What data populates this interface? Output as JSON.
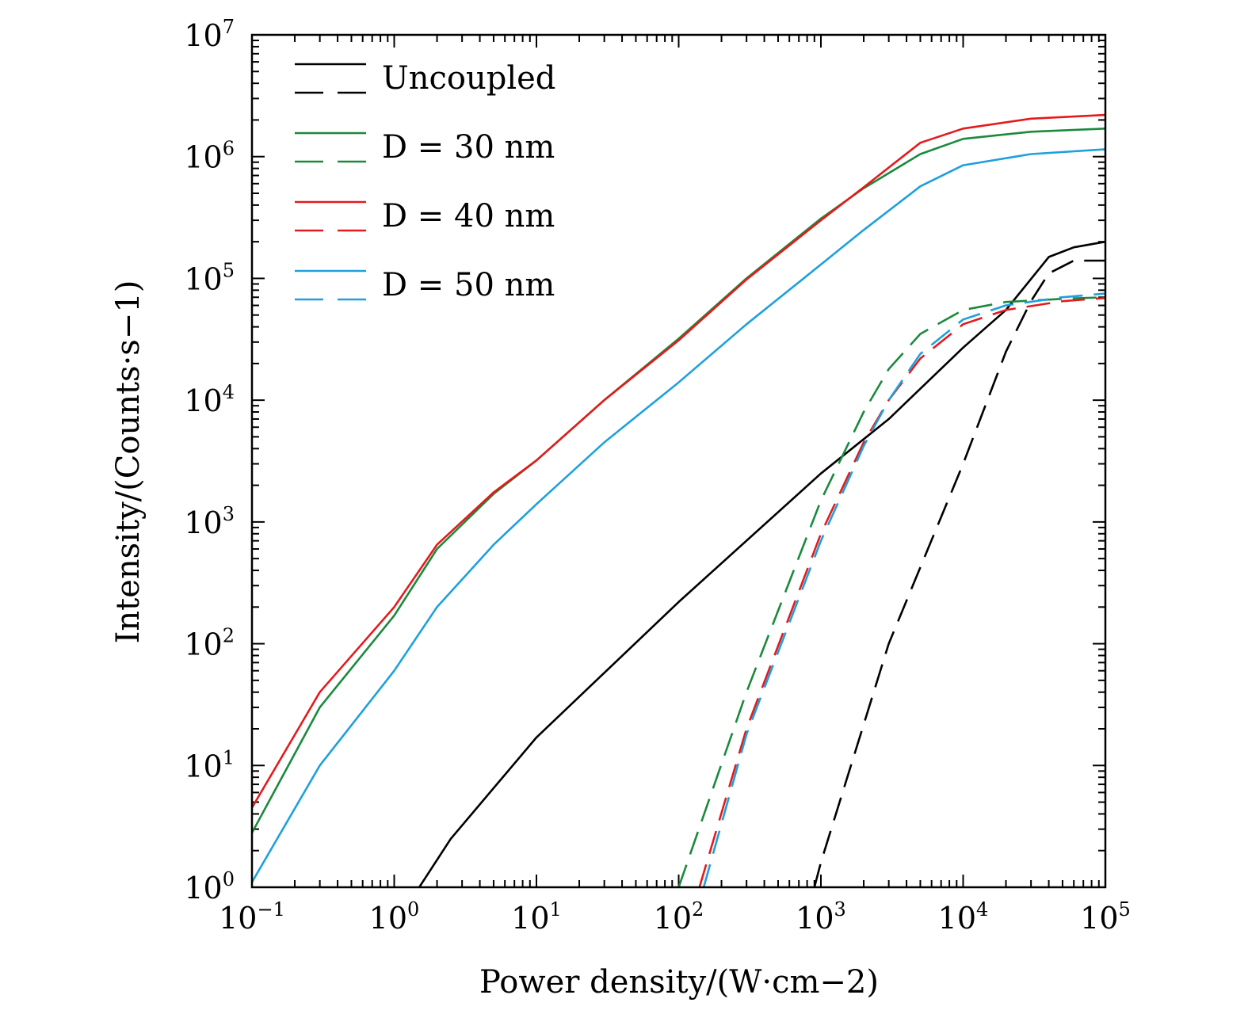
{
  "chart_data": {
    "type": "line",
    "xscale": "log",
    "yscale": "log",
    "xlim": [
      0.1,
      100000
    ],
    "ylim": [
      1,
      10000000
    ],
    "xlabel": "Power density/(W·cm−2)",
    "ylabel": "Intensity/(Counts·s−1)",
    "x_ticks": [
      {
        "base": "10",
        "exp": "−1",
        "value": 0.1
      },
      {
        "base": "10",
        "exp": "0",
        "value": 1
      },
      {
        "base": "10",
        "exp": "1",
        "value": 10
      },
      {
        "base": "10",
        "exp": "2",
        "value": 100
      },
      {
        "base": "10",
        "exp": "3",
        "value": 1000
      },
      {
        "base": "10",
        "exp": "4",
        "value": 10000
      },
      {
        "base": "10",
        "exp": "5",
        "value": 100000
      }
    ],
    "y_ticks": [
      {
        "base": "10",
        "exp": "0",
        "value": 1
      },
      {
        "base": "10",
        "exp": "1",
        "value": 10
      },
      {
        "base": "10",
        "exp": "2",
        "value": 100
      },
      {
        "base": "10",
        "exp": "3",
        "value": 1000
      },
      {
        "base": "10",
        "exp": "4",
        "value": 10000
      },
      {
        "base": "10",
        "exp": "5",
        "value": 100000
      },
      {
        "base": "10",
        "exp": "6",
        "value": 1000000
      },
      {
        "base": "10",
        "exp": "7",
        "value": 10000000
      }
    ],
    "legend": {
      "position": "top-left",
      "entries": [
        {
          "label": "Uncoupled",
          "color": "#000000"
        },
        {
          "label": "D = 30 nm",
          "color": "#1a8a3c"
        },
        {
          "label": "D = 40 nm",
          "color": "#e41a1c"
        },
        {
          "label": "D = 50 nm",
          "color": "#1ea0dc"
        }
      ]
    },
    "series": [
      {
        "group": "Uncoupled",
        "style": "solid",
        "color": "#000000",
        "points": [
          [
            1.5,
            1
          ],
          [
            2.5,
            2.5
          ],
          [
            10,
            17
          ],
          [
            100,
            220
          ],
          [
            1000,
            2500
          ],
          [
            3000,
            7000
          ],
          [
            10000,
            27000
          ],
          [
            20000,
            55000
          ],
          [
            40000,
            150000
          ],
          [
            60000,
            180000
          ],
          [
            100000,
            200000
          ]
        ]
      },
      {
        "group": "Uncoupled",
        "style": "dashed",
        "color": "#000000",
        "points": [
          [
            900,
            1
          ],
          [
            1000,
            1.6
          ],
          [
            3000,
            100
          ],
          [
            10000,
            3000
          ],
          [
            20000,
            25000
          ],
          [
            30000,
            65000
          ],
          [
            40000,
            110000
          ],
          [
            60000,
            140000
          ],
          [
            100000,
            140000
          ]
        ]
      },
      {
        "group": "D = 30 nm",
        "style": "solid",
        "color": "#1a8a3c",
        "points": [
          [
            0.1,
            2.8
          ],
          [
            0.3,
            30
          ],
          [
            1,
            170
          ],
          [
            2,
            600
          ],
          [
            5,
            1700
          ],
          [
            10,
            3200
          ],
          [
            30,
            10000
          ],
          [
            100,
            32000
          ],
          [
            300,
            100000
          ],
          [
            1000,
            310000
          ],
          [
            2000,
            550000
          ],
          [
            5000,
            1050000
          ],
          [
            10000,
            1400000
          ],
          [
            30000,
            1600000
          ],
          [
            100000,
            1700000
          ]
        ]
      },
      {
        "group": "D = 30 nm",
        "style": "dashed",
        "color": "#1a8a3c",
        "points": [
          [
            100,
            1
          ],
          [
            300,
            40
          ],
          [
            1000,
            1500
          ],
          [
            2000,
            8000
          ],
          [
            3000,
            18000
          ],
          [
            5000,
            35000
          ],
          [
            10000,
            55000
          ],
          [
            20000,
            64000
          ],
          [
            50000,
            68000
          ],
          [
            100000,
            70000
          ]
        ]
      },
      {
        "group": "D = 40 nm",
        "style": "solid",
        "color": "#e41a1c",
        "points": [
          [
            0.1,
            4.5
          ],
          [
            0.3,
            40
          ],
          [
            1,
            200
          ],
          [
            2,
            650
          ],
          [
            5,
            1750
          ],
          [
            10,
            3200
          ],
          [
            30,
            10000
          ],
          [
            100,
            31000
          ],
          [
            300,
            98000
          ],
          [
            1000,
            300000
          ],
          [
            2000,
            560000
          ],
          [
            5000,
            1300000
          ],
          [
            10000,
            1700000
          ],
          [
            30000,
            2050000
          ],
          [
            100000,
            2200000
          ]
        ]
      },
      {
        "group": "D = 40 nm",
        "style": "dashed",
        "color": "#e41a1c",
        "points": [
          [
            140,
            1
          ],
          [
            300,
            20
          ],
          [
            1000,
            800
          ],
          [
            2000,
            4500
          ],
          [
            3000,
            10000
          ],
          [
            5000,
            22000
          ],
          [
            10000,
            42000
          ],
          [
            20000,
            55000
          ],
          [
            50000,
            65000
          ],
          [
            100000,
            69000
          ]
        ]
      },
      {
        "group": "D = 50 nm",
        "style": "solid",
        "color": "#1ea0dc",
        "points": [
          [
            0.1,
            1.1
          ],
          [
            0.3,
            10
          ],
          [
            1,
            60
          ],
          [
            2,
            200
          ],
          [
            5,
            650
          ],
          [
            10,
            1400
          ],
          [
            30,
            4500
          ],
          [
            100,
            14000
          ],
          [
            300,
            42000
          ],
          [
            1000,
            130000
          ],
          [
            2000,
            250000
          ],
          [
            5000,
            570000
          ],
          [
            10000,
            850000
          ],
          [
            30000,
            1050000
          ],
          [
            100000,
            1150000
          ]
        ]
      },
      {
        "group": "D = 50 nm",
        "style": "dashed",
        "color": "#1ea0dc",
        "points": [
          [
            150,
            1
          ],
          [
            300,
            18
          ],
          [
            1000,
            700
          ],
          [
            2000,
            4200
          ],
          [
            3000,
            10000
          ],
          [
            5000,
            24000
          ],
          [
            10000,
            46000
          ],
          [
            20000,
            60000
          ],
          [
            50000,
            70000
          ],
          [
            100000,
            75000
          ]
        ]
      }
    ]
  }
}
